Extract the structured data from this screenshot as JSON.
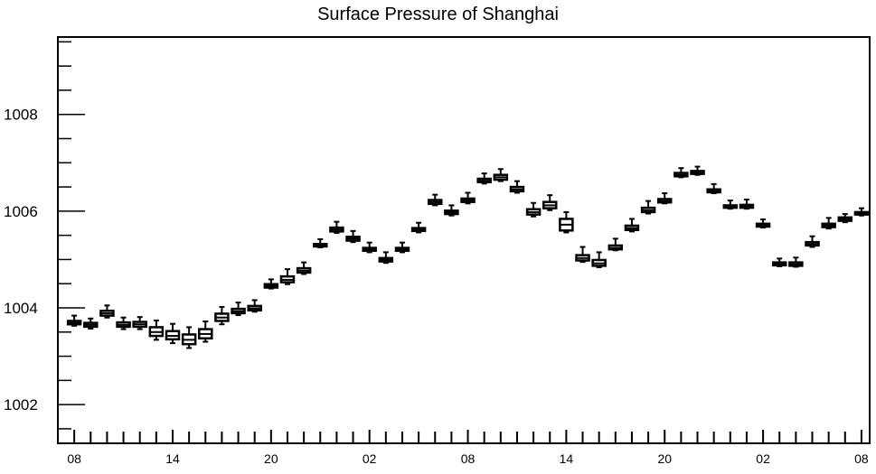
{
  "chart_data": {
    "type": "box",
    "title": "Surface Pressure of Shanghai",
    "xlabel": "",
    "ylabel": "",
    "ylim": [
      1001.2,
      1009.6
    ],
    "y_ticks": [
      1002,
      1004,
      1006,
      1008
    ],
    "y_tick_labels": [
      "1002",
      "1004",
      "1006",
      "1008"
    ],
    "x_range": [
      -1,
      48.5
    ],
    "x_ticks": [
      0,
      6,
      12,
      18,
      24,
      30,
      36,
      42,
      48
    ],
    "x_tick_labels": [
      "08",
      "14",
      "20",
      "02",
      "08",
      "14",
      "20",
      "02",
      "08"
    ],
    "grid": false,
    "series": [
      {
        "boxes": [
          {
            "x": 0,
            "min": 1003.63,
            "q1": 1003.66,
            "median": 1003.69,
            "q3": 1003.73,
            "max": 1003.84
          },
          {
            "x": 1,
            "min": 1003.57,
            "q1": 1003.61,
            "median": 1003.65,
            "q3": 1003.69,
            "max": 1003.78
          },
          {
            "x": 2,
            "min": 1003.8,
            "q1": 1003.84,
            "median": 1003.89,
            "q3": 1003.94,
            "max": 1004.05
          },
          {
            "x": 3,
            "min": 1003.56,
            "q1": 1003.61,
            "median": 1003.65,
            "q3": 1003.7,
            "max": 1003.8
          },
          {
            "x": 4,
            "min": 1003.56,
            "q1": 1003.61,
            "median": 1003.66,
            "q3": 1003.71,
            "max": 1003.81
          },
          {
            "x": 5,
            "min": 1003.34,
            "q1": 1003.42,
            "median": 1003.5,
            "q3": 1003.6,
            "max": 1003.74
          },
          {
            "x": 6,
            "min": 1003.27,
            "q1": 1003.35,
            "median": 1003.42,
            "q3": 1003.52,
            "max": 1003.67
          },
          {
            "x": 7,
            "min": 1003.17,
            "q1": 1003.25,
            "median": 1003.34,
            "q3": 1003.45,
            "max": 1003.6
          },
          {
            "x": 8,
            "min": 1003.3,
            "q1": 1003.37,
            "median": 1003.46,
            "q3": 1003.56,
            "max": 1003.72
          },
          {
            "x": 9,
            "min": 1003.66,
            "q1": 1003.73,
            "median": 1003.8,
            "q3": 1003.88,
            "max": 1004.02
          },
          {
            "x": 10,
            "min": 1003.85,
            "q1": 1003.89,
            "median": 1003.93,
            "q3": 1003.98,
            "max": 1004.11
          },
          {
            "x": 11,
            "min": 1003.92,
            "q1": 1003.95,
            "median": 1003.99,
            "q3": 1004.04,
            "max": 1004.16
          },
          {
            "x": 12,
            "min": 1004.4,
            "q1": 1004.42,
            "median": 1004.45,
            "q3": 1004.49,
            "max": 1004.59
          },
          {
            "x": 13,
            "min": 1004.49,
            "q1": 1004.53,
            "median": 1004.58,
            "q3": 1004.65,
            "max": 1004.8
          },
          {
            "x": 14,
            "min": 1004.7,
            "q1": 1004.73,
            "median": 1004.77,
            "q3": 1004.82,
            "max": 1004.94
          },
          {
            "x": 15,
            "min": 1005.25,
            "q1": 1005.27,
            "median": 1005.29,
            "q3": 1005.32,
            "max": 1005.42
          },
          {
            "x": 16,
            "min": 1005.55,
            "q1": 1005.58,
            "median": 1005.62,
            "q3": 1005.66,
            "max": 1005.78
          },
          {
            "x": 17,
            "min": 1005.36,
            "q1": 1005.39,
            "median": 1005.43,
            "q3": 1005.47,
            "max": 1005.59
          },
          {
            "x": 18,
            "min": 1005.15,
            "q1": 1005.18,
            "median": 1005.21,
            "q3": 1005.24,
            "max": 1005.35
          },
          {
            "x": 19,
            "min": 1004.93,
            "q1": 1004.96,
            "median": 1004.99,
            "q3": 1005.03,
            "max": 1005.15
          },
          {
            "x": 20,
            "min": 1005.15,
            "q1": 1005.18,
            "median": 1005.21,
            "q3": 1005.24,
            "max": 1005.35
          },
          {
            "x": 21,
            "min": 1005.56,
            "q1": 1005.59,
            "median": 1005.62,
            "q3": 1005.65,
            "max": 1005.76
          },
          {
            "x": 22,
            "min": 1006.12,
            "q1": 1006.15,
            "median": 1006.19,
            "q3": 1006.23,
            "max": 1006.34
          },
          {
            "x": 23,
            "min": 1005.91,
            "q1": 1005.94,
            "median": 1005.97,
            "q3": 1006.01,
            "max": 1006.12
          },
          {
            "x": 24,
            "min": 1006.16,
            "q1": 1006.19,
            "median": 1006.22,
            "q3": 1006.26,
            "max": 1006.38
          },
          {
            "x": 25,
            "min": 1006.57,
            "q1": 1006.6,
            "median": 1006.63,
            "q3": 1006.67,
            "max": 1006.78
          },
          {
            "x": 26,
            "min": 1006.62,
            "q1": 1006.65,
            "median": 1006.7,
            "q3": 1006.75,
            "max": 1006.87
          },
          {
            "x": 27,
            "min": 1006.38,
            "q1": 1006.41,
            "median": 1006.45,
            "q3": 1006.5,
            "max": 1006.62
          },
          {
            "x": 28,
            "min": 1005.89,
            "q1": 1005.93,
            "median": 1005.98,
            "q3": 1006.04,
            "max": 1006.17
          },
          {
            "x": 29,
            "min": 1006.02,
            "q1": 1006.06,
            "median": 1006.12,
            "q3": 1006.19,
            "max": 1006.33
          },
          {
            "x": 30,
            "min": 1005.56,
            "q1": 1005.6,
            "median": 1005.72,
            "q3": 1005.84,
            "max": 1005.98
          },
          {
            "x": 31,
            "min": 1004.95,
            "q1": 1004.98,
            "median": 1005.03,
            "q3": 1005.09,
            "max": 1005.26
          },
          {
            "x": 32,
            "min": 1004.84,
            "q1": 1004.87,
            "median": 1004.92,
            "q3": 1004.99,
            "max": 1005.15
          },
          {
            "x": 33,
            "min": 1005.19,
            "q1": 1005.21,
            "median": 1005.24,
            "q3": 1005.29,
            "max": 1005.43
          },
          {
            "x": 34,
            "min": 1005.58,
            "q1": 1005.61,
            "median": 1005.65,
            "q3": 1005.7,
            "max": 1005.84
          },
          {
            "x": 35,
            "min": 1005.95,
            "q1": 1005.98,
            "median": 1006.02,
            "q3": 1006.07,
            "max": 1006.21
          },
          {
            "x": 36,
            "min": 1006.16,
            "q1": 1006.18,
            "median": 1006.21,
            "q3": 1006.25,
            "max": 1006.37
          },
          {
            "x": 37,
            "min": 1006.7,
            "q1": 1006.72,
            "median": 1006.75,
            "q3": 1006.79,
            "max": 1006.89
          },
          {
            "x": 38,
            "min": 1006.75,
            "q1": 1006.77,
            "median": 1006.8,
            "q3": 1006.83,
            "max": 1006.92
          },
          {
            "x": 39,
            "min": 1006.37,
            "q1": 1006.39,
            "median": 1006.42,
            "q3": 1006.45,
            "max": 1006.56
          },
          {
            "x": 40,
            "min": 1006.05,
            "q1": 1006.07,
            "median": 1006.09,
            "q3": 1006.12,
            "max": 1006.22
          },
          {
            "x": 41,
            "min": 1006.05,
            "q1": 1006.07,
            "median": 1006.1,
            "q3": 1006.13,
            "max": 1006.24
          },
          {
            "x": 42,
            "min": 1005.66,
            "q1": 1005.68,
            "median": 1005.71,
            "q3": 1005.74,
            "max": 1005.83
          },
          {
            "x": 43,
            "min": 1004.86,
            "q1": 1004.88,
            "median": 1004.91,
            "q3": 1004.94,
            "max": 1005.02
          },
          {
            "x": 44,
            "min": 1004.85,
            "q1": 1004.87,
            "median": 1004.9,
            "q3": 1004.94,
            "max": 1005.04
          },
          {
            "x": 45,
            "min": 1005.26,
            "q1": 1005.29,
            "median": 1005.32,
            "q3": 1005.36,
            "max": 1005.48
          },
          {
            "x": 46,
            "min": 1005.64,
            "q1": 1005.67,
            "median": 1005.7,
            "q3": 1005.74,
            "max": 1005.86
          },
          {
            "x": 47,
            "min": 1005.77,
            "q1": 1005.8,
            "median": 1005.83,
            "q3": 1005.87,
            "max": 1005.94
          },
          {
            "x": 48,
            "min": 1005.91,
            "q1": 1005.93,
            "median": 1005.95,
            "q3": 1005.98,
            "max": 1006.06
          }
        ]
      }
    ]
  }
}
